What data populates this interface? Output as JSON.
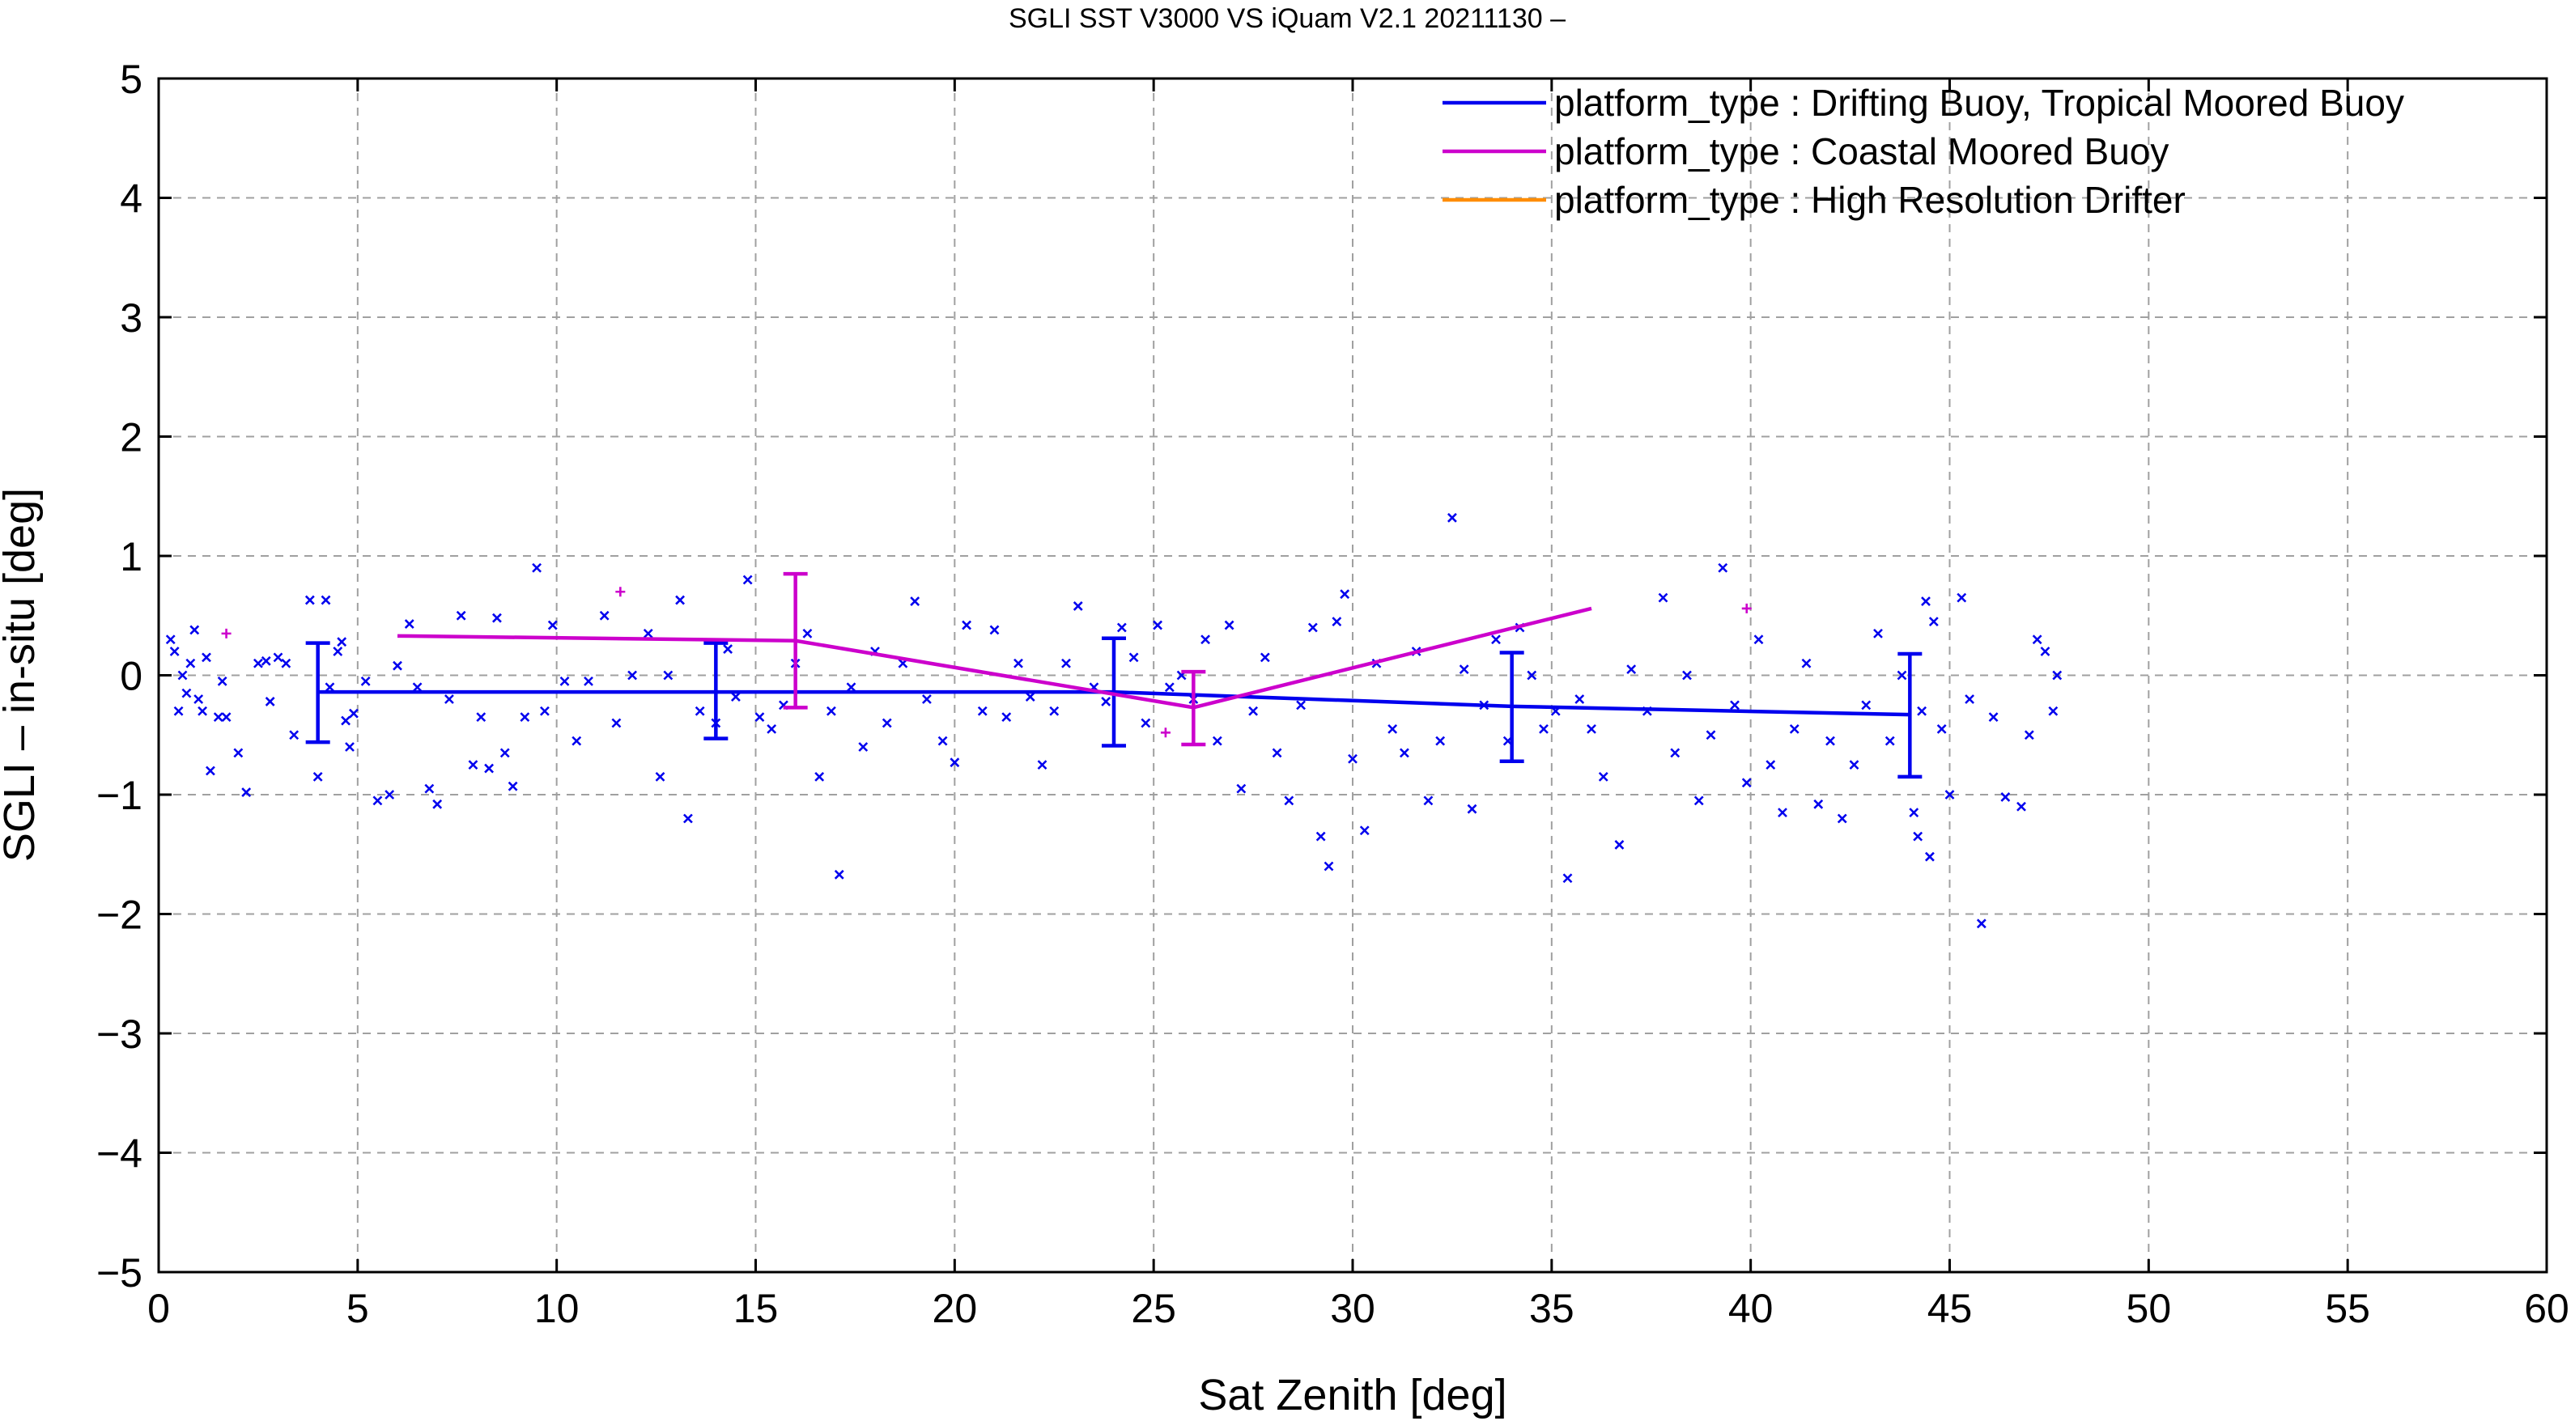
{
  "chart_data": {
    "type": "scatter",
    "title": "SGLI SST V3000 VS iQuam V2.1 20211130 –",
    "xlabel": "Sat Zenith [deg]",
    "ylabel": "SGLI – in-situ [deg]",
    "xlim": [
      0,
      60
    ],
    "ylim": [
      -5,
      5
    ],
    "xticks": [
      "0",
      "5",
      "10",
      "15",
      "20",
      "25",
      "30",
      "35",
      "40",
      "45",
      "50",
      "55",
      "60"
    ],
    "yticks": [
      "−5",
      "−4",
      "−3",
      "−2",
      "−1",
      "0",
      "1",
      "2",
      "3",
      "4",
      "5"
    ],
    "grid": true,
    "legend_position": "top-right",
    "series": [
      {
        "name": "platform_type : Drifting Buoy, Tropical Moored Buoy",
        "color": "#0000ee",
        "marker": "x",
        "line_x": [
          4,
          14,
          24,
          34,
          44
        ],
        "line_y": [
          -0.14,
          -0.14,
          -0.14,
          -0.26,
          -0.33
        ],
        "errorbars": [
          {
            "x": 4,
            "low": -0.56,
            "high": 0.27
          },
          {
            "x": 14,
            "low": -0.53,
            "high": 0.27
          },
          {
            "x": 24,
            "low": -0.59,
            "high": 0.31
          },
          {
            "x": 34,
            "low": -0.72,
            "high": 0.19
          },
          {
            "x": 44,
            "low": -0.85,
            "high": 0.18
          }
        ],
        "points": [
          [
            0.3,
            0.3
          ],
          [
            0.4,
            0.2
          ],
          [
            0.5,
            -0.3
          ],
          [
            0.6,
            0.0
          ],
          [
            0.7,
            -0.15
          ],
          [
            0.8,
            0.1
          ],
          [
            0.9,
            0.38
          ],
          [
            1.0,
            -0.2
          ],
          [
            1.1,
            -0.3
          ],
          [
            1.2,
            0.15
          ],
          [
            1.3,
            -0.8
          ],
          [
            1.5,
            -0.35
          ],
          [
            1.6,
            -0.05
          ],
          [
            1.7,
            -0.35
          ],
          [
            2.0,
            -0.65
          ],
          [
            2.2,
            -0.98
          ],
          [
            2.5,
            0.1
          ],
          [
            2.7,
            0.12
          ],
          [
            2.8,
            -0.22
          ],
          [
            3.0,
            0.15
          ],
          [
            3.2,
            0.1
          ],
          [
            3.4,
            -0.5
          ],
          [
            3.8,
            0.63
          ],
          [
            4.0,
            -0.85
          ],
          [
            4.2,
            0.63
          ],
          [
            4.3,
            -0.1
          ],
          [
            4.5,
            0.2
          ],
          [
            4.6,
            0.28
          ],
          [
            4.7,
            -0.38
          ],
          [
            4.8,
            -0.6
          ],
          [
            4.9,
            -0.32
          ],
          [
            5.2,
            -0.05
          ],
          [
            5.5,
            -1.05
          ],
          [
            5.8,
            -1.0
          ],
          [
            6.0,
            0.08
          ],
          [
            6.3,
            0.43
          ],
          [
            6.5,
            -0.1
          ],
          [
            6.8,
            -0.95
          ],
          [
            7.0,
            -1.08
          ],
          [
            7.3,
            -0.2
          ],
          [
            7.6,
            0.5
          ],
          [
            7.9,
            -0.75
          ],
          [
            8.1,
            -0.35
          ],
          [
            8.3,
            -0.78
          ],
          [
            8.5,
            0.48
          ],
          [
            8.7,
            -0.65
          ],
          [
            8.9,
            -0.93
          ],
          [
            9.2,
            -0.35
          ],
          [
            9.5,
            0.9
          ],
          [
            9.7,
            -0.3
          ],
          [
            9.9,
            0.42
          ],
          [
            10.2,
            -0.05
          ],
          [
            10.5,
            -0.55
          ],
          [
            10.8,
            -0.05
          ],
          [
            11.2,
            0.5
          ],
          [
            11.5,
            -0.4
          ],
          [
            11.9,
            0.0
          ],
          [
            12.3,
            0.35
          ],
          [
            12.6,
            -0.85
          ],
          [
            12.8,
            0.0
          ],
          [
            13.1,
            0.63
          ],
          [
            13.3,
            -1.2
          ],
          [
            13.6,
            -0.3
          ],
          [
            14.0,
            -0.4
          ],
          [
            14.3,
            0.22
          ],
          [
            14.5,
            -0.18
          ],
          [
            14.8,
            0.8
          ],
          [
            15.1,
            -0.35
          ],
          [
            15.4,
            -0.45
          ],
          [
            15.7,
            -0.25
          ],
          [
            16.0,
            0.1
          ],
          [
            16.3,
            0.35
          ],
          [
            16.6,
            -0.85
          ],
          [
            16.9,
            -0.3
          ],
          [
            17.1,
            -1.67
          ],
          [
            17.4,
            -0.1
          ],
          [
            17.7,
            -0.6
          ],
          [
            18.0,
            0.2
          ],
          [
            18.3,
            -0.4
          ],
          [
            18.7,
            0.1
          ],
          [
            19.0,
            0.62
          ],
          [
            19.3,
            -0.2
          ],
          [
            19.7,
            -0.55
          ],
          [
            20.0,
            -0.73
          ],
          [
            20.3,
            0.42
          ],
          [
            20.7,
            -0.3
          ],
          [
            21.0,
            0.38
          ],
          [
            21.3,
            -0.35
          ],
          [
            21.6,
            0.1
          ],
          [
            21.9,
            -0.18
          ],
          [
            22.2,
            -0.75
          ],
          [
            22.5,
            -0.3
          ],
          [
            22.8,
            0.1
          ],
          [
            23.1,
            0.58
          ],
          [
            23.5,
            -0.1
          ],
          [
            23.8,
            -0.22
          ],
          [
            24.2,
            0.4
          ],
          [
            24.5,
            0.15
          ],
          [
            24.8,
            -0.4
          ],
          [
            25.1,
            0.42
          ],
          [
            25.4,
            -0.1
          ],
          [
            25.7,
            0.0
          ],
          [
            26.0,
            -0.2
          ],
          [
            26.3,
            0.3
          ],
          [
            26.6,
            -0.55
          ],
          [
            26.9,
            0.42
          ],
          [
            27.2,
            -0.95
          ],
          [
            27.5,
            -0.3
          ],
          [
            27.8,
            0.15
          ],
          [
            28.1,
            -0.65
          ],
          [
            28.4,
            -1.05
          ],
          [
            28.7,
            -0.25
          ],
          [
            29.0,
            0.4
          ],
          [
            29.2,
            -1.35
          ],
          [
            29.4,
            -1.6
          ],
          [
            29.6,
            0.45
          ],
          [
            29.8,
            0.68
          ],
          [
            30.0,
            -0.7
          ],
          [
            30.3,
            -1.3
          ],
          [
            30.6,
            0.1
          ],
          [
            31.0,
            -0.45
          ],
          [
            31.3,
            -0.65
          ],
          [
            31.6,
            0.2
          ],
          [
            31.9,
            -1.05
          ],
          [
            32.2,
            -0.55
          ],
          [
            32.5,
            1.32
          ],
          [
            32.8,
            0.05
          ],
          [
            33.0,
            -1.12
          ],
          [
            33.3,
            -0.25
          ],
          [
            33.6,
            0.3
          ],
          [
            33.9,
            -0.55
          ],
          [
            34.2,
            0.4
          ],
          [
            34.5,
            0.0
          ],
          [
            34.8,
            -0.45
          ],
          [
            35.1,
            -0.3
          ],
          [
            35.4,
            -1.7
          ],
          [
            35.7,
            -0.2
          ],
          [
            36.0,
            -0.45
          ],
          [
            36.3,
            -0.85
          ],
          [
            36.7,
            -1.42
          ],
          [
            37.0,
            0.05
          ],
          [
            37.4,
            -0.3
          ],
          [
            37.8,
            0.65
          ],
          [
            38.1,
            -0.65
          ],
          [
            38.4,
            0.0
          ],
          [
            38.7,
            -1.05
          ],
          [
            39.0,
            -0.5
          ],
          [
            39.3,
            0.9
          ],
          [
            39.6,
            -0.25
          ],
          [
            39.9,
            -0.9
          ],
          [
            40.2,
            0.3
          ],
          [
            40.5,
            -0.75
          ],
          [
            40.8,
            -1.15
          ],
          [
            41.1,
            -0.45
          ],
          [
            41.4,
            0.1
          ],
          [
            41.7,
            -1.08
          ],
          [
            42.0,
            -0.55
          ],
          [
            42.3,
            -1.2
          ],
          [
            42.6,
            -0.75
          ],
          [
            42.9,
            -0.25
          ],
          [
            43.2,
            0.35
          ],
          [
            43.5,
            -0.55
          ],
          [
            43.8,
            0.0
          ],
          [
            44.1,
            -1.15
          ],
          [
            44.2,
            -1.35
          ],
          [
            44.3,
            -0.3
          ],
          [
            44.4,
            0.62
          ],
          [
            44.5,
            -1.52
          ],
          [
            44.6,
            0.45
          ],
          [
            44.8,
            -0.45
          ],
          [
            45.0,
            -1.0
          ],
          [
            45.3,
            0.65
          ],
          [
            45.5,
            -0.2
          ],
          [
            45.8,
            -2.08
          ],
          [
            46.1,
            -0.35
          ],
          [
            46.4,
            -1.02
          ],
          [
            46.8,
            -1.1
          ],
          [
            47.0,
            -0.5
          ],
          [
            47.2,
            0.3
          ],
          [
            47.4,
            0.2
          ],
          [
            47.6,
            -0.3
          ],
          [
            47.7,
            0.0
          ]
        ]
      },
      {
        "name": "platform_type : Coastal Moored Buoy",
        "color": "#cc00cc",
        "marker": "+",
        "line_x": [
          6,
          16,
          26,
          36
        ],
        "line_y": [
          0.33,
          0.29,
          -0.27,
          0.56
        ],
        "errorbars": [
          {
            "x": 16,
            "low": -0.27,
            "high": 0.85
          },
          {
            "x": 26,
            "low": -0.58,
            "high": 0.03
          }
        ],
        "points": [
          [
            1.7,
            0.35
          ],
          [
            11.6,
            0.7
          ],
          [
            25.3,
            -0.48
          ],
          [
            39.9,
            0.56
          ]
        ]
      },
      {
        "name": "platform_type : High Resolution Drifter",
        "color": "#ff8c00",
        "marker": "+",
        "line_x": [],
        "line_y": [],
        "errorbars": [],
        "points": []
      }
    ]
  }
}
